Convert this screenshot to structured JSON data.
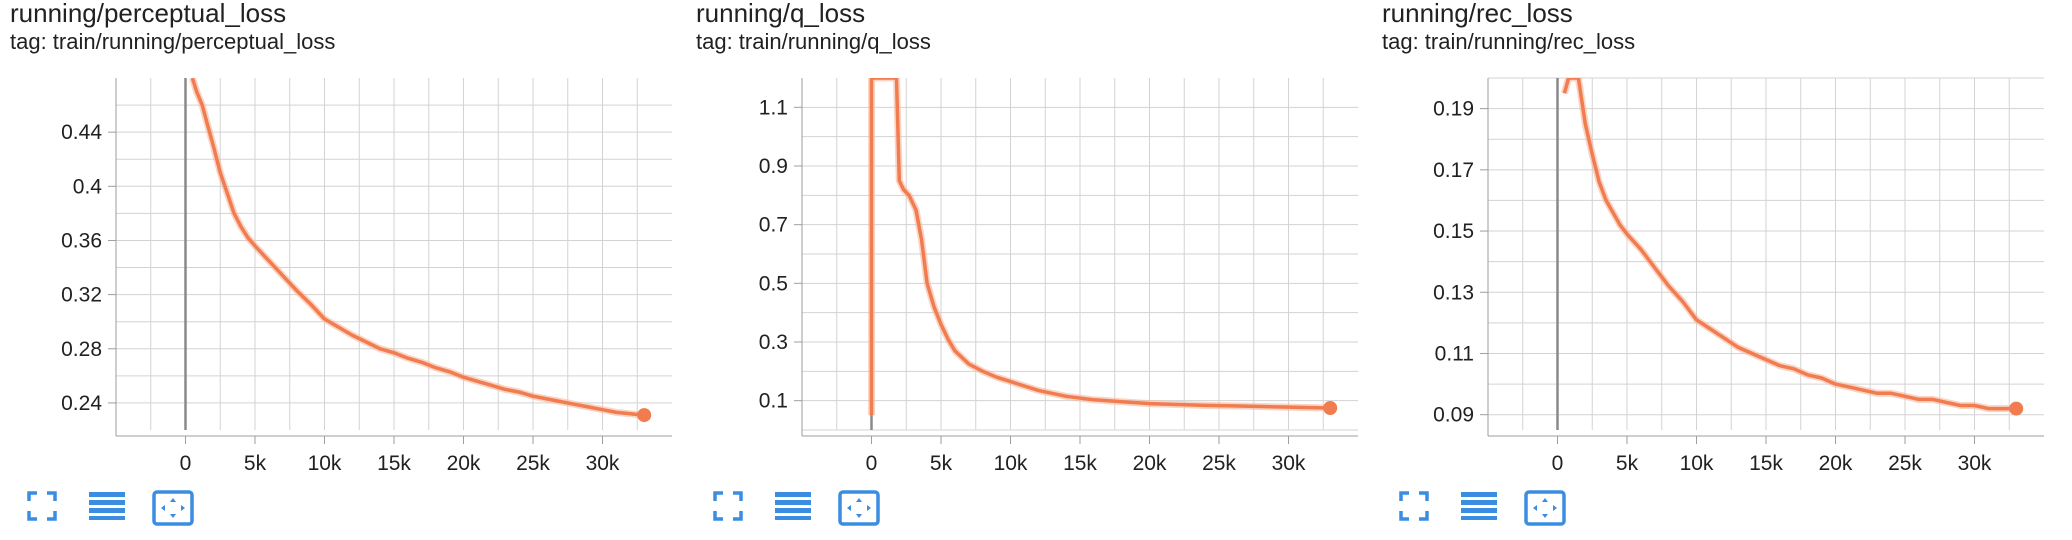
{
  "colors": {
    "series": "#f07c4f",
    "series_light": "#f7b79c",
    "grid": "#d3d3d3",
    "axis": "#9e9e9e",
    "zero": "#8a8a8a",
    "icon": "#3a8de0"
  },
  "toolbar": {
    "icons": [
      "fullscreen-icon",
      "toggle-log-scale-icon",
      "fit-domain-icon"
    ]
  },
  "cards": [
    {
      "title": "running/perceptual_loss",
      "tag": "tag: train/running/perceptual_loss"
    },
    {
      "title": "running/q_loss",
      "tag": "tag: train/running/q_loss"
    },
    {
      "title": "running/rec_loss",
      "tag": "tag: train/running/rec_loss"
    }
  ],
  "chart_data": [
    {
      "type": "line",
      "title": "running/perceptual_loss",
      "xlabel": "",
      "ylabel": "",
      "xlim": [
        -5000,
        35000
      ],
      "ylim": [
        0.22,
        0.48
      ],
      "xticks": [
        0,
        5000,
        10000,
        15000,
        20000,
        25000,
        30000
      ],
      "xtick_labels": [
        "0",
        "5k",
        "10k",
        "15k",
        "20k",
        "25k",
        "30k"
      ],
      "yticks": [
        0.24,
        0.28,
        0.32,
        0.36,
        0.4,
        0.44
      ],
      "ytick_labels": [
        "0.24",
        "0.28",
        "0.32",
        "0.36",
        "0.4",
        "0.44"
      ],
      "grid": true,
      "series": [
        {
          "x": [
            500,
            800,
            1200,
            1600,
            2000,
            2500,
            3000,
            3500,
            4000,
            4500,
            5000,
            6000,
            7000,
            8000,
            9000,
            10000,
            11000,
            12000,
            13000,
            14000,
            15000,
            16000,
            17000,
            18000,
            19000,
            20000,
            21000,
            22000,
            23000,
            24000,
            25000,
            26000,
            27000,
            28000,
            29000,
            30000,
            31000,
            32000,
            33000
          ],
          "y": [
            0.48,
            0.47,
            0.46,
            0.445,
            0.43,
            0.41,
            0.395,
            0.38,
            0.37,
            0.362,
            0.356,
            0.345,
            0.334,
            0.323,
            0.313,
            0.302,
            0.296,
            0.29,
            0.285,
            0.28,
            0.277,
            0.273,
            0.27,
            0.266,
            0.263,
            0.259,
            0.256,
            0.253,
            0.25,
            0.248,
            0.245,
            0.243,
            0.241,
            0.239,
            0.237,
            0.235,
            0.233,
            0.232,
            0.231
          ]
        }
      ]
    },
    {
      "type": "line",
      "title": "running/q_loss",
      "xlabel": "",
      "ylabel": "",
      "xlim": [
        -5000,
        35000
      ],
      "ylim": [
        0.0,
        1.2
      ],
      "xticks": [
        0,
        5000,
        10000,
        15000,
        20000,
        25000,
        30000
      ],
      "xtick_labels": [
        "0",
        "5k",
        "10k",
        "15k",
        "20k",
        "25k",
        "30k"
      ],
      "yticks": [
        0.1,
        0.3,
        0.5,
        0.7,
        0.9,
        1.1
      ],
      "ytick_labels": [
        "0.1",
        "0.3",
        "0.5",
        "0.7",
        "0.9",
        "1.1"
      ],
      "grid": true,
      "series": [
        {
          "x": [
            0,
            0,
            100,
            100,
            1800,
            2000,
            2300,
            2700,
            3200,
            3600,
            4000,
            4500,
            5000,
            5500,
            6000,
            7000,
            8000,
            9000,
            10000,
            12000,
            14000,
            16000,
            18000,
            20000,
            22000,
            24000,
            26000,
            28000,
            30000,
            32000,
            33000
          ],
          "y": [
            0.05,
            1.2,
            1.2,
            1.2,
            1.2,
            0.85,
            0.82,
            0.8,
            0.75,
            0.65,
            0.5,
            0.42,
            0.36,
            0.31,
            0.27,
            0.225,
            0.2,
            0.18,
            0.165,
            0.135,
            0.115,
            0.103,
            0.096,
            0.09,
            0.087,
            0.084,
            0.082,
            0.08,
            0.078,
            0.076,
            0.075
          ]
        }
      ]
    },
    {
      "type": "line",
      "title": "running/rec_loss",
      "xlabel": "",
      "ylabel": "",
      "xlim": [
        -5000,
        35000
      ],
      "ylim": [
        0.085,
        0.2
      ],
      "xticks": [
        0,
        5000,
        10000,
        15000,
        20000,
        25000,
        30000
      ],
      "xtick_labels": [
        "0",
        "5k",
        "10k",
        "15k",
        "20k",
        "25k",
        "30k"
      ],
      "yticks": [
        0.09,
        0.11,
        0.13,
        0.15,
        0.17,
        0.19
      ],
      "ytick_labels": [
        "0.09",
        "0.11",
        "0.13",
        "0.15",
        "0.17",
        "0.19"
      ],
      "grid": true,
      "series": [
        {
          "x": [
            500,
            800,
            1200,
            1500,
            2000,
            2500,
            3000,
            3500,
            4000,
            4500,
            5000,
            6000,
            7000,
            8000,
            9000,
            10000,
            11000,
            12000,
            13000,
            14000,
            15000,
            16000,
            17000,
            18000,
            19000,
            20000,
            21000,
            22000,
            23000,
            24000,
            25000,
            26000,
            27000,
            28000,
            29000,
            30000,
            31000,
            32000,
            33000
          ],
          "y": [
            0.195,
            0.2,
            0.2,
            0.2,
            0.185,
            0.175,
            0.166,
            0.16,
            0.156,
            0.152,
            0.149,
            0.144,
            0.138,
            0.132,
            0.127,
            0.121,
            0.118,
            0.115,
            0.112,
            0.11,
            0.108,
            0.106,
            0.105,
            0.103,
            0.102,
            0.1,
            0.099,
            0.098,
            0.097,
            0.097,
            0.096,
            0.095,
            0.095,
            0.094,
            0.093,
            0.093,
            0.092,
            0.092,
            0.092
          ]
        }
      ]
    }
  ]
}
